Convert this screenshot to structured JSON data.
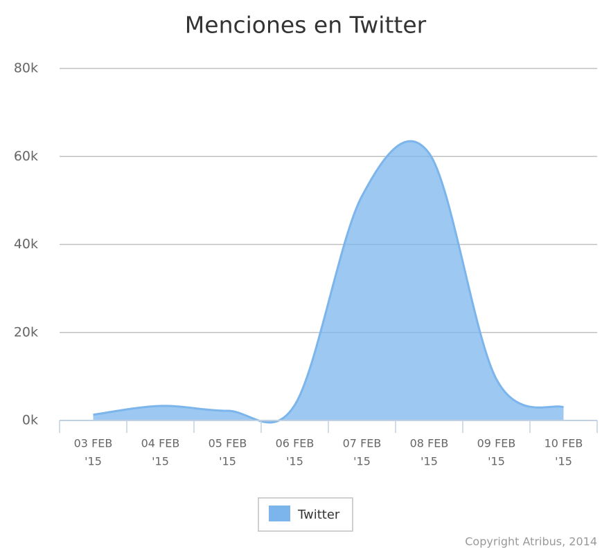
{
  "chart_data": {
    "type": "areaspline",
    "title": "Menciones en Twitter",
    "categories": [
      [
        "03 FEB",
        "'15"
      ],
      [
        "04 FEB",
        "'15"
      ],
      [
        "05 FEB",
        "'15"
      ],
      [
        "06 FEB",
        "'15"
      ],
      [
        "07 FEB",
        "'15"
      ],
      [
        "08 FEB",
        "'15"
      ],
      [
        "09 FEB",
        "'15"
      ],
      [
        "10 FEB",
        "'15"
      ]
    ],
    "series": [
      {
        "name": "Twitter",
        "color": "#7cb5ec",
        "values": [
          1300,
          3300,
          2200,
          3500,
          51000,
          60700,
          9400,
          3000
        ]
      }
    ],
    "ylim": [
      0,
      80000
    ],
    "yticks": [
      {
        "value": 0,
        "label": "0k"
      },
      {
        "value": 20000,
        "label": "20k"
      },
      {
        "value": 40000,
        "label": "40k"
      },
      {
        "value": 60000,
        "label": "60k"
      },
      {
        "value": 80000,
        "label": "80k"
      }
    ],
    "grid": true,
    "legend": "bottom",
    "credits": "Copyright Atribus, 2014"
  }
}
